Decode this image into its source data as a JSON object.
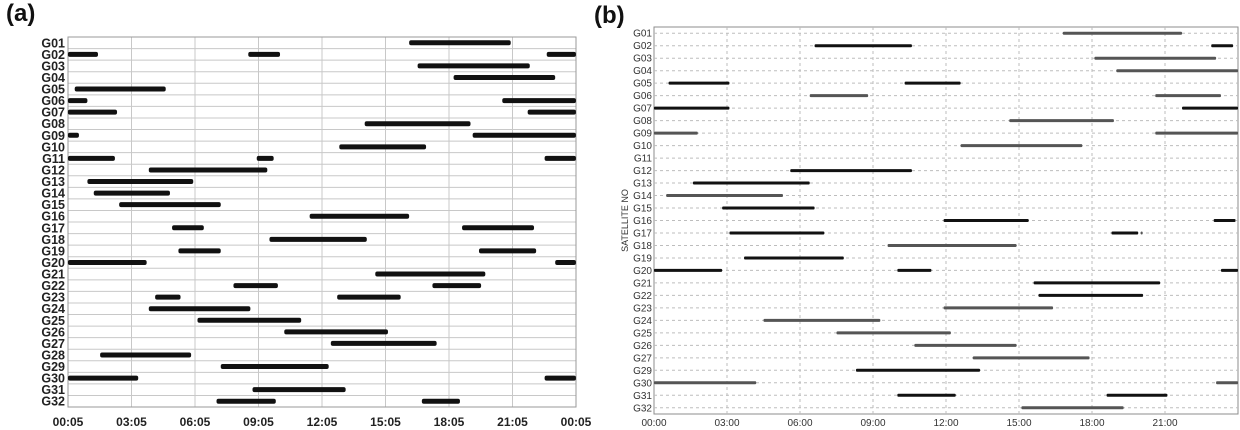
{
  "panels": [
    {
      "label": "(a)"
    },
    {
      "label": "(b)"
    }
  ],
  "colors": {
    "bar_black": "#111111",
    "bar_gray": "#555555",
    "grid_a": "#c8c8c8",
    "grid_b": "#bdbdbd"
  },
  "chart_data": [
    {
      "type": "gantt",
      "panel": "(a)",
      "title": "",
      "xlabel": "",
      "ylabel": "",
      "x_unit": "hours of day",
      "xlim": [
        0.0833,
        24.0833
      ],
      "xticks": [
        0.0833,
        3.0833,
        6.0833,
        9.0833,
        12.0833,
        15.0833,
        18.0833,
        21.0833,
        24.0833
      ],
      "xtick_labels": [
        "00:05",
        "03:05",
        "06:05",
        "09:05",
        "12:05",
        "15:05",
        "18:05",
        "21:05",
        "00:05"
      ],
      "grid": true,
      "categories": [
        "G01",
        "G02",
        "G03",
        "G04",
        "G05",
        "G06",
        "G07",
        "G08",
        "G09",
        "G10",
        "G11",
        "G12",
        "G13",
        "G14",
        "G15",
        "G16",
        "G17",
        "G18",
        "G19",
        "G20",
        "G21",
        "G22",
        "G23",
        "G24",
        "G25",
        "G26",
        "G27",
        "G28",
        "G29",
        "G30",
        "G31",
        "G32"
      ],
      "intervals": [
        [
          [
            16.2,
            21.0
          ]
        ],
        [
          [
            0.08,
            1.5
          ],
          [
            8.6,
            10.1
          ],
          [
            22.7,
            24.08
          ]
        ],
        [
          [
            16.6,
            21.9
          ]
        ],
        [
          [
            18.3,
            23.1
          ]
        ],
        [
          [
            0.4,
            4.7
          ]
        ],
        [
          [
            0.08,
            1.0
          ],
          [
            20.6,
            24.08
          ]
        ],
        [
          [
            0.08,
            2.4
          ],
          [
            21.8,
            24.08
          ]
        ],
        [
          [
            14.1,
            19.1
          ]
        ],
        [
          [
            0.08,
            0.6
          ],
          [
            19.2,
            24.08
          ]
        ],
        [
          [
            12.9,
            17.0
          ]
        ],
        [
          [
            0.08,
            2.3
          ],
          [
            9.0,
            9.8
          ],
          [
            22.6,
            24.08
          ]
        ],
        [
          [
            3.9,
            9.5
          ]
        ],
        [
          [
            1.0,
            6.0
          ]
        ],
        [
          [
            1.3,
            4.9
          ]
        ],
        [
          [
            2.5,
            7.3
          ]
        ],
        [
          [
            11.5,
            16.2
          ]
        ],
        [
          [
            5.0,
            6.5
          ],
          [
            18.7,
            22.1
          ]
        ],
        [
          [
            9.6,
            14.2
          ]
        ],
        [
          [
            5.3,
            7.3
          ],
          [
            19.5,
            22.2
          ]
        ],
        [
          [
            0.08,
            3.8
          ],
          [
            23.1,
            24.08
          ]
        ],
        [
          [
            14.6,
            19.8
          ]
        ],
        [
          [
            7.9,
            10.0
          ],
          [
            17.3,
            19.6
          ]
        ],
        [
          [
            4.2,
            5.4
          ],
          [
            12.8,
            15.8
          ]
        ],
        [
          [
            3.9,
            8.7
          ]
        ],
        [
          [
            6.2,
            11.1
          ]
        ],
        [
          [
            10.3,
            15.2
          ]
        ],
        [
          [
            12.5,
            17.5
          ]
        ],
        [
          [
            1.6,
            5.9
          ]
        ],
        [
          [
            7.3,
            12.4
          ]
        ],
        [
          [
            0.08,
            3.4
          ],
          [
            22.6,
            24.08
          ]
        ],
        [
          [
            8.8,
            13.2
          ]
        ],
        [
          [
            7.1,
            9.9
          ],
          [
            16.8,
            18.6
          ]
        ]
      ]
    },
    {
      "type": "gantt",
      "panel": "(b)",
      "title": "",
      "xlabel": "",
      "ylabel": "SATELLITE NO",
      "x_unit": "hours of day",
      "xlim": [
        0.0,
        24.0
      ],
      "xticks": [
        0,
        3,
        6,
        9,
        12,
        15,
        18,
        21
      ],
      "xtick_labels": [
        "00:00",
        "03:00",
        "06:00",
        "09:00",
        "12:00",
        "15:00",
        "18:00",
        "21:00"
      ],
      "grid": true,
      "categories": [
        "G01",
        "G02",
        "G03",
        "G04",
        "G05",
        "G06",
        "G07",
        "G08",
        "G09",
        "G10",
        "G11",
        "G12",
        "G13",
        "G14",
        "G15",
        "G16",
        "G17",
        "G18",
        "G19",
        "G20",
        "G21",
        "G22",
        "G23",
        "G24",
        "G25",
        "G26",
        "G27",
        "G29",
        "G30",
        "G31",
        "G32"
      ],
      "intervals": [
        [
          [
            16.8,
            21.7
          ]
        ],
        [
          [
            6.6,
            10.6
          ],
          [
            22.9,
            23.8
          ]
        ],
        [
          [
            18.1,
            23.1
          ]
        ],
        [
          [
            19.0,
            24.0
          ]
        ],
        [
          [
            0.6,
            3.1
          ],
          [
            10.3,
            12.6
          ]
        ],
        [
          [
            6.4,
            8.8
          ],
          [
            20.6,
            23.3
          ]
        ],
        [
          [
            0.0,
            3.1
          ],
          [
            21.7,
            24.0
          ]
        ],
        [
          [
            14.6,
            18.9
          ]
        ],
        [
          [
            0.0,
            1.8
          ],
          [
            20.6,
            24.0
          ]
        ],
        [
          [
            12.6,
            17.6
          ]
        ],
        [],
        [
          [
            5.6,
            10.6
          ]
        ],
        [
          [
            1.6,
            6.4
          ]
        ],
        [
          [
            0.5,
            5.3
          ]
        ],
        [
          [
            2.8,
            6.6
          ]
        ],
        [
          [
            11.9,
            15.4
          ],
          [
            23.0,
            23.9
          ]
        ],
        [
          [
            3.1,
            7.0
          ],
          [
            18.8,
            19.9
          ],
          [
            20.0,
            20.05
          ]
        ],
        [
          [
            9.6,
            14.9
          ]
        ],
        [
          [
            3.7,
            7.8
          ]
        ],
        [
          [
            0.0,
            2.8
          ],
          [
            10.0,
            11.4
          ],
          [
            23.3,
            24.0
          ]
        ],
        [
          [
            15.6,
            20.8
          ]
        ],
        [
          [
            15.8,
            20.1
          ]
        ],
        [
          [
            11.9,
            16.4
          ]
        ],
        [
          [
            4.5,
            9.3
          ]
        ],
        [
          [
            7.5,
            12.2
          ]
        ],
        [
          [
            10.7,
            14.9
          ]
        ],
        [
          [
            13.1,
            17.9
          ]
        ],
        [
          [
            8.3,
            13.4
          ]
        ],
        [
          [
            0.0,
            4.2
          ],
          [
            23.1,
            24.0
          ]
        ],
        [
          [
            10.0,
            12.4
          ],
          [
            18.6,
            21.1
          ]
        ],
        [
          [
            15.1,
            19.3
          ]
        ]
      ],
      "interval_shades": [
        [
          "gray"
        ],
        [
          "black",
          "black"
        ],
        [
          "gray"
        ],
        [
          "gray"
        ],
        [
          "black",
          "black"
        ],
        [
          "gray",
          "gray"
        ],
        [
          "black",
          "black"
        ],
        [
          "gray"
        ],
        [
          "gray",
          "gray"
        ],
        [
          "gray"
        ],
        [],
        [
          "black"
        ],
        [
          "black"
        ],
        [
          "gray"
        ],
        [
          "black"
        ],
        [
          "black",
          "black"
        ],
        [
          "black",
          "black",
          "gray"
        ],
        [
          "gray"
        ],
        [
          "black"
        ],
        [
          "black",
          "black",
          "black"
        ],
        [
          "black"
        ],
        [
          "black"
        ],
        [
          "gray"
        ],
        [
          "gray"
        ],
        [
          "gray"
        ],
        [
          "gray"
        ],
        [
          "gray"
        ],
        [
          "black"
        ],
        [
          "gray",
          "gray"
        ],
        [
          "black",
          "black"
        ],
        [
          "gray"
        ]
      ]
    }
  ]
}
